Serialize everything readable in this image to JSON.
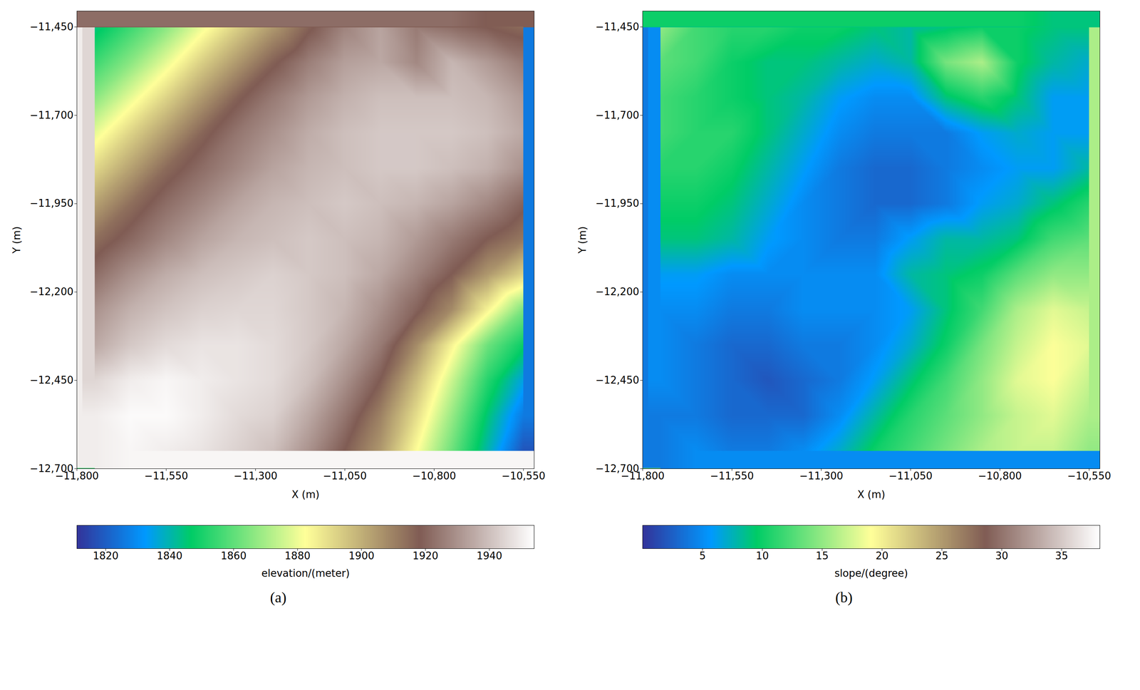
{
  "chart_data": [
    {
      "type": "heatmap",
      "title": "(a)",
      "xlabel": "X (m)",
      "ylabel": "Y (m)",
      "xlim": [
        -11800,
        -10520
      ],
      "ylim": [
        -12700,
        -11405
      ],
      "xticks": [
        {
          "value": -11800,
          "label": "−11,800"
        },
        {
          "value": -11550,
          "label": "−11,550"
        },
        {
          "value": -11300,
          "label": "−11,300"
        },
        {
          "value": -11050,
          "label": "−11,050"
        },
        {
          "value": -10800,
          "label": "−10,800"
        },
        {
          "value": -10550,
          "label": "−10,550"
        }
      ],
      "yticks": [
        {
          "value": -11450,
          "label": "−11,450"
        },
        {
          "value": -11700,
          "label": "−11,700"
        },
        {
          "value": -11950,
          "label": "−11,950"
        },
        {
          "value": -12200,
          "label": "−12,200"
        },
        {
          "value": -12450,
          "label": "−12,450"
        },
        {
          "value": -12700,
          "label": "−12,700"
        }
      ],
      "x": [
        -11750,
        -11650,
        -11550,
        -11450,
        -11350,
        -11250,
        -11150,
        -11050,
        -10950,
        -10850,
        -10750,
        -10650,
        -10550
      ],
      "y": [
        -11450,
        -11550,
        -11650,
        -11750,
        -11850,
        -11950,
        -12050,
        -12150,
        -12250,
        -12350,
        -12450,
        -12550,
        -12650
      ],
      "values": [
        [
          1844,
          1855,
          1866,
          1880,
          1893,
          1905,
          1917,
          1927,
          1934,
          1925,
          1922,
          1918,
          1915
        ],
        [
          1855,
          1866,
          1879,
          1893,
          1905,
          1917,
          1926,
          1933,
          1935,
          1928,
          1938,
          1932,
          1925
        ],
        [
          1866,
          1879,
          1892,
          1905,
          1917,
          1925,
          1932,
          1937,
          1940,
          1940,
          1940,
          1938,
          1932
        ],
        [
          1879,
          1892,
          1904,
          1916,
          1924,
          1930,
          1936,
          1940,
          1942,
          1942,
          1942,
          1940,
          1935
        ],
        [
          1891,
          1903,
          1915,
          1922,
          1928,
          1934,
          1938,
          1940,
          1942,
          1942,
          1940,
          1937,
          1930
        ],
        [
          1903,
          1914,
          1922,
          1928,
          1934,
          1938,
          1940,
          1942,
          1940,
          1938,
          1934,
          1928,
          1920
        ],
        [
          1914,
          1921,
          1928,
          1934,
          1938,
          1940,
          1942,
          1940,
          1938,
          1932,
          1925,
          1918,
          1912
        ],
        [
          1922,
          1930,
          1936,
          1940,
          1942,
          1944,
          1942,
          1940,
          1935,
          1927,
          1918,
          1905,
          1892
        ],
        [
          1930,
          1937,
          1941,
          1944,
          1945,
          1945,
          1942,
          1938,
          1930,
          1920,
          1908,
          1885,
          1864
        ],
        [
          1935,
          1942,
          1946,
          1948,
          1948,
          1946,
          1942,
          1935,
          1925,
          1908,
          1885,
          1862,
          1848
        ],
        [
          1945,
          1950,
          1952,
          1950,
          1948,
          1946,
          1940,
          1930,
          1918,
          1898,
          1875,
          1852,
          1835
        ],
        [
          1950,
          1953,
          1953,
          1950,
          1946,
          1944,
          1935,
          1924,
          1910,
          1890,
          1868,
          1845,
          1826
        ],
        [
          1950,
          1952,
          1950,
          1948,
          1944,
          1940,
          1930,
          1918,
          1905,
          1883,
          1862,
          1840,
          1818
        ]
      ],
      "colorbar": {
        "label": "elevation/(meter)",
        "range": [
          1811,
          1954
        ],
        "ticks": [
          1820,
          1840,
          1860,
          1880,
          1900,
          1920,
          1940
        ]
      }
    },
    {
      "type": "heatmap",
      "title": "(b)",
      "xlabel": "X (m)",
      "ylabel": "Y (m)",
      "xlim": [
        -11800,
        -10520
      ],
      "ylim": [
        -12700,
        -11405
      ],
      "xticks": [
        {
          "value": -11800,
          "label": "−11,800"
        },
        {
          "value": -11550,
          "label": "−11,550"
        },
        {
          "value": -11300,
          "label": "−11,300"
        },
        {
          "value": -11050,
          "label": "−11,050"
        },
        {
          "value": -10800,
          "label": "−10,800"
        },
        {
          "value": -10550,
          "label": "−10,550"
        }
      ],
      "yticks": [
        {
          "value": -11450,
          "label": "−11,450"
        },
        {
          "value": -11700,
          "label": "−11,700"
        },
        {
          "value": -11950,
          "label": "−11,950"
        },
        {
          "value": -12200,
          "label": "−12,200"
        },
        {
          "value": -12450,
          "label": "−12,450"
        },
        {
          "value": -12700,
          "label": "−12,700"
        }
      ],
      "x": [
        -11750,
        -11650,
        -11550,
        -11450,
        -11350,
        -11250,
        -11150,
        -11050,
        -10950,
        -10850,
        -10750,
        -10650,
        -10550
      ],
      "y": [
        -11450,
        -11550,
        -11650,
        -11750,
        -11850,
        -11950,
        -12050,
        -12150,
        -12250,
        -12350,
        -12450,
        -12550,
        -12650
      ],
      "values": [
        [
          15,
          12,
          11,
          11,
          10,
          10,
          9,
          8,
          9,
          10,
          10,
          9,
          9
        ],
        [
          13,
          12,
          10,
          9,
          9,
          8,
          7,
          8,
          14,
          16,
          10,
          8,
          7
        ],
        [
          12,
          11,
          10,
          9,
          8,
          6,
          5,
          5,
          9,
          11,
          9,
          6,
          6
        ],
        [
          12,
          11,
          11,
          9,
          7,
          5,
          4,
          4,
          4,
          6,
          7,
          6,
          6
        ],
        [
          11,
          11,
          10,
          8,
          6,
          4,
          3,
          3,
          4,
          5,
          6,
          6,
          8
        ],
        [
          10,
          10,
          9,
          7,
          5,
          4,
          3,
          3,
          4,
          6,
          7,
          9,
          11
        ],
        [
          9,
          9,
          8,
          6,
          5,
          4,
          4,
          6,
          8,
          8,
          9,
          12,
          13
        ],
        [
          6,
          6,
          5,
          5,
          5,
          5,
          5,
          8,
          9,
          10,
          13,
          15,
          15
        ],
        [
          5,
          5,
          4,
          4,
          5,
          5,
          5,
          6,
          9,
          12,
          16,
          18,
          17
        ],
        [
          5,
          4,
          3,
          3,
          4,
          4,
          5,
          7,
          10,
          14,
          17,
          19,
          18
        ],
        [
          5,
          4,
          3,
          2,
          3,
          4,
          6,
          9,
          12,
          15,
          18,
          19,
          17
        ],
        [
          4,
          4,
          3,
          3,
          3,
          5,
          8,
          11,
          13,
          15,
          17,
          18,
          16
        ],
        [
          4,
          5,
          4,
          4,
          5,
          7,
          10,
          12,
          14,
          16,
          17,
          17,
          15
        ]
      ],
      "colorbar": {
        "label": "slope/(degree)",
        "range": [
          0,
          38.2
        ],
        "ticks": [
          5,
          10,
          15,
          20,
          25,
          30,
          35
        ]
      }
    }
  ]
}
